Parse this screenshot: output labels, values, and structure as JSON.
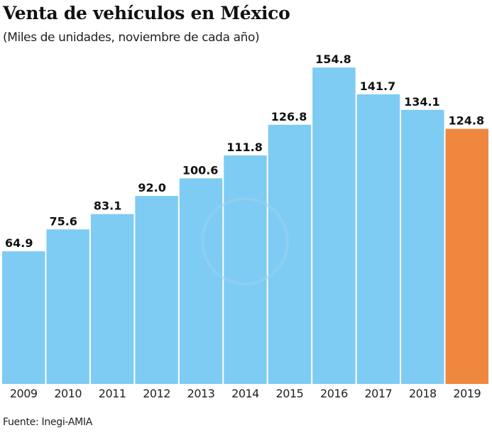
{
  "chart_data": {
    "type": "bar",
    "title": "Venta de vehículos en México",
    "subtitle": "(Miles de unidades, noviembre de cada año)",
    "categories": [
      "2009",
      "2010",
      "2011",
      "2012",
      "2013",
      "2014",
      "2015",
      "2016",
      "2017",
      "2018",
      "2019"
    ],
    "values": [
      64.9,
      75.6,
      83.1,
      92.0,
      100.6,
      111.8,
      126.8,
      154.8,
      141.7,
      134.1,
      124.8
    ],
    "value_labels": [
      "64.9",
      "75.6",
      "83.1",
      "92.0",
      "100.6",
      "111.8",
      "126.8",
      "154.8",
      "141.7",
      "134.1",
      "124.8"
    ],
    "xlabel": "",
    "ylabel": "",
    "ylim": [
      0,
      155
    ],
    "grid": false,
    "colors": {
      "default": "#7ecbf3",
      "highlight": "#f0873f"
    },
    "highlight_category": "2019",
    "source": "Fuente: Inegi-AMIA"
  }
}
